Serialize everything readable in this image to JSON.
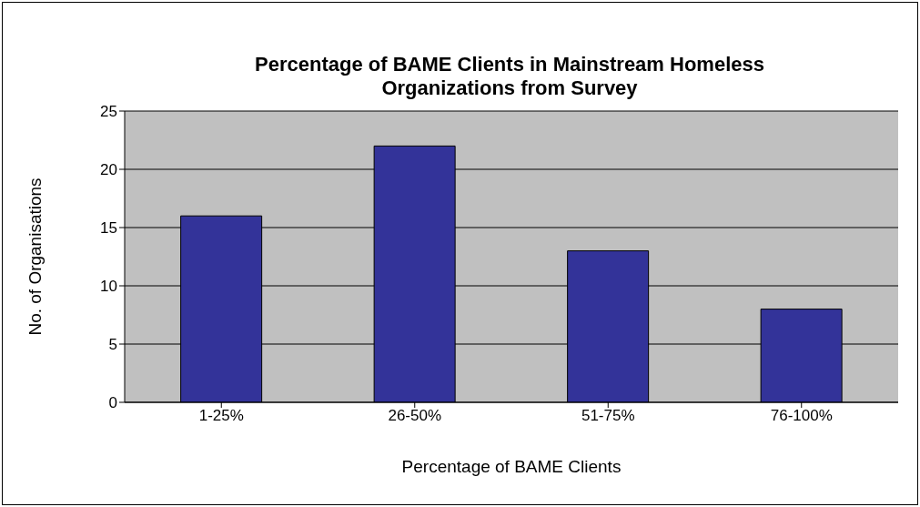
{
  "chart_data": {
    "type": "bar",
    "title": "Percentage of BAME Clients in Mainstream Homeless Organizations from Survey",
    "xlabel": "Percentage of BAME Clients",
    "ylabel": "No. of Organisations",
    "categories": [
      "1-25%",
      "26-50%",
      "51-75%",
      "76-100%"
    ],
    "values": [
      16,
      22,
      13,
      8
    ],
    "color": "#333399",
    "ylim": [
      0,
      25
    ],
    "yticks": [
      0,
      5,
      10,
      15,
      20,
      25
    ],
    "grid": "y",
    "legend": false
  }
}
